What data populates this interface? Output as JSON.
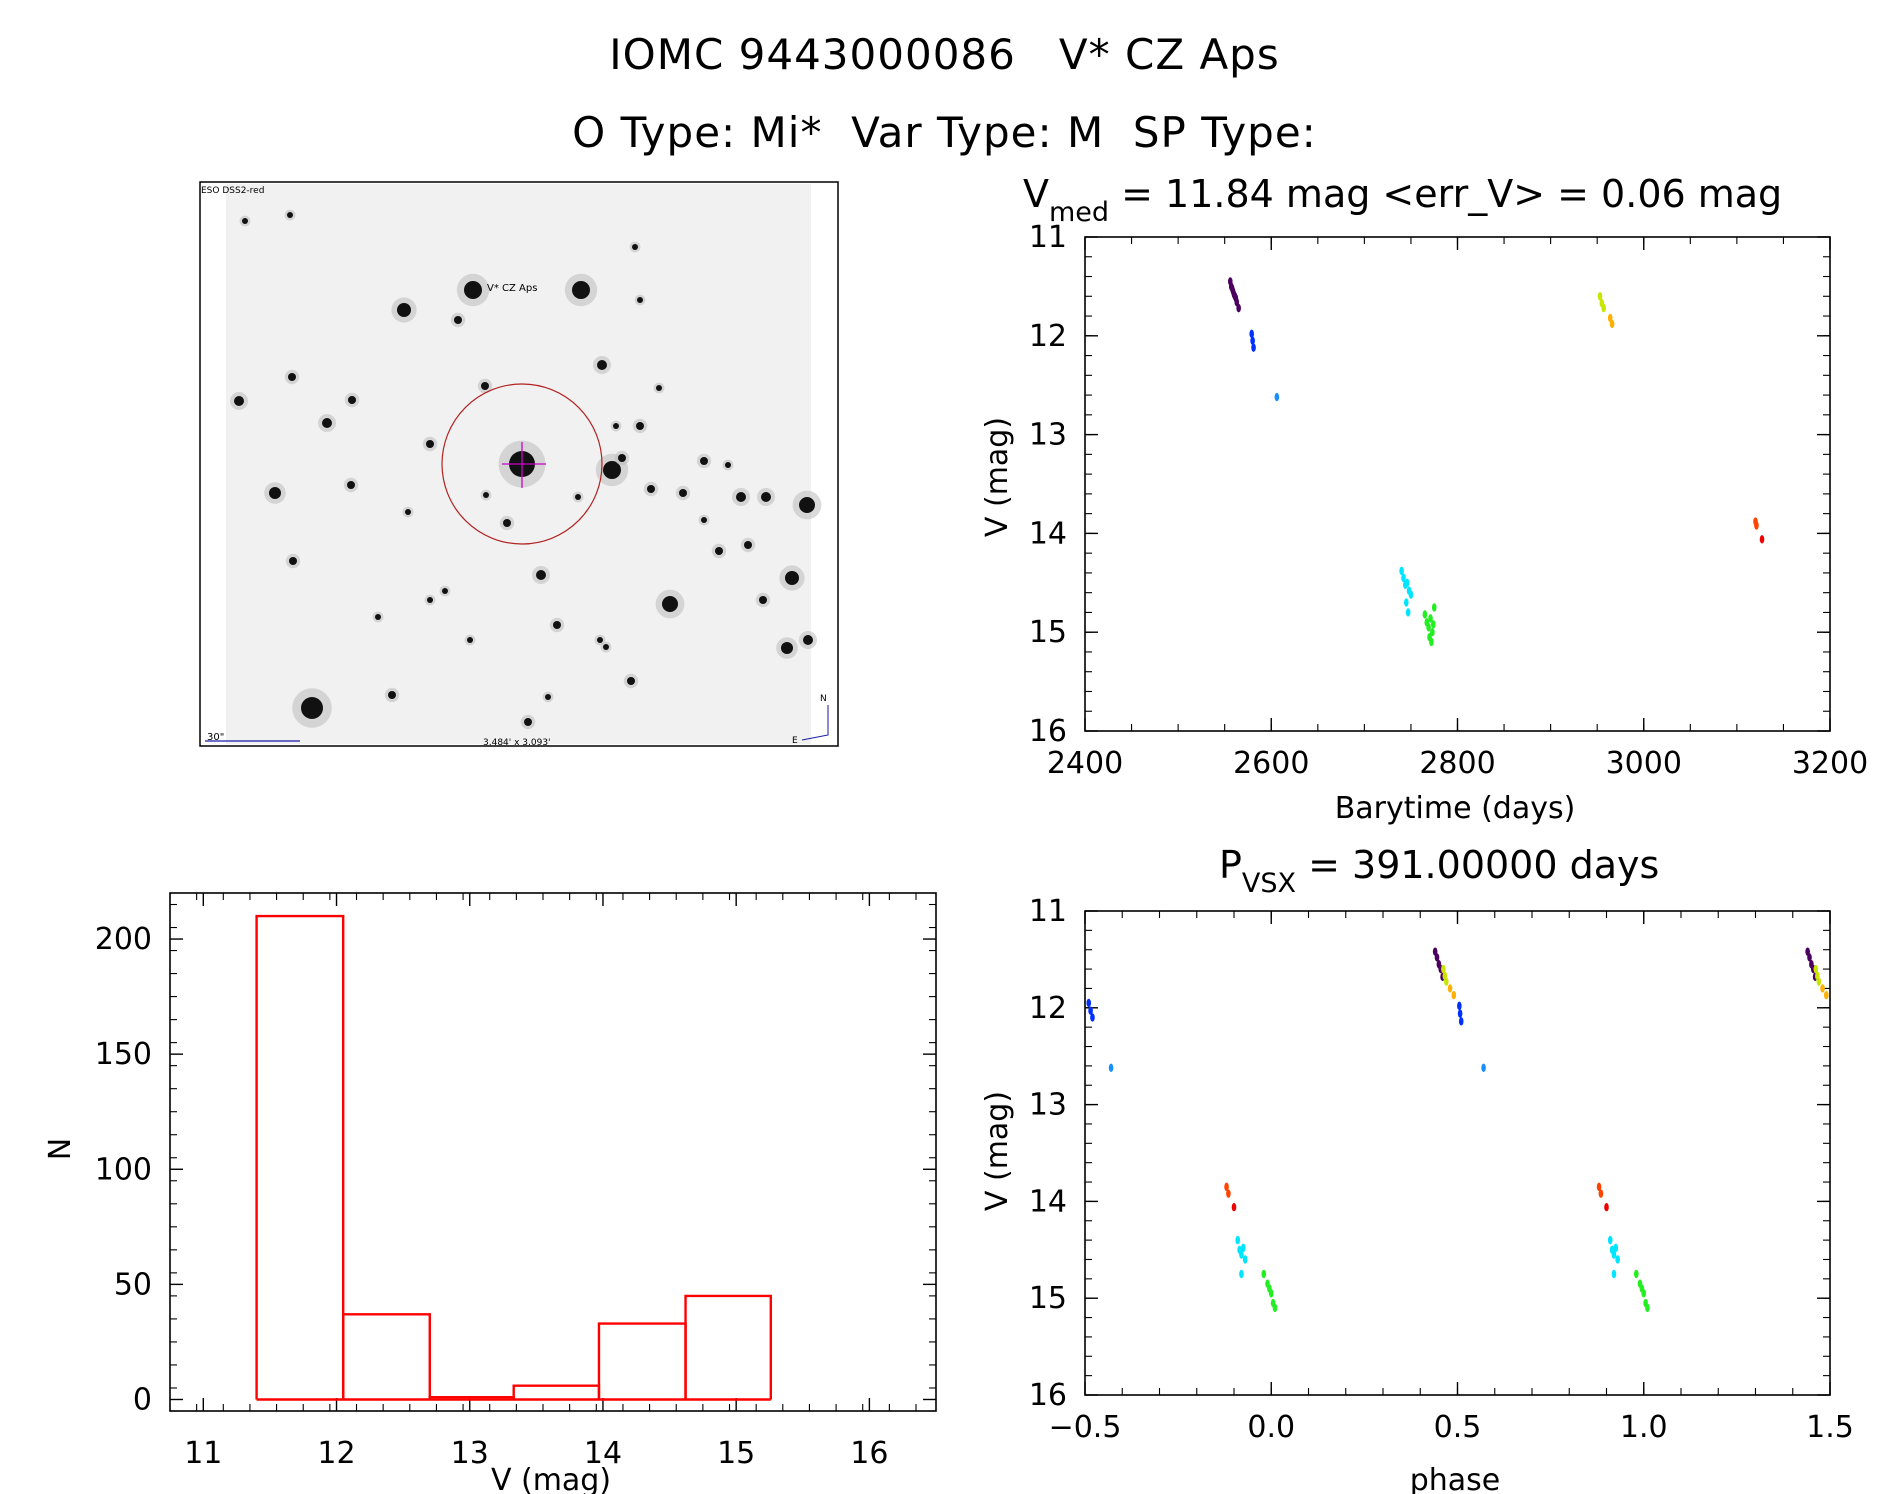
{
  "header": {
    "title_line1": "IOMC 9443000086   V* CZ Aps",
    "title_line2": "O Type: Mi*  Var Type: M  SP Type:"
  },
  "image_panel": {
    "survey_label": "ESO DSS2-red",
    "object_label": "V* CZ Aps",
    "scale_label": "30\"",
    "size_label": "3.484' x 3.093'",
    "north_label": "N",
    "east_label": "E"
  },
  "colors": {
    "histogram": "#ff0000",
    "circle": "#b22222",
    "crosshair": "#cc00cc",
    "label_blue": "#1a1aa6",
    "label_red": "#cc0000"
  },
  "chart_data": [
    {
      "id": "lightcurve",
      "type": "scatter",
      "title_main": "V",
      "title_sub": "med",
      "title_rest": " = 11.84 mag <err_V> = 0.06 mag",
      "xlabel": "Barytime (days)",
      "ylabel": "V (mag)",
      "xlim": [
        2400,
        3200
      ],
      "ylim": [
        16,
        11
      ],
      "xticks": [
        2400,
        2600,
        2800,
        3000,
        3200
      ],
      "yticks": [
        11,
        12,
        13,
        14,
        15,
        16
      ],
      "groups": [
        {
          "color": "#4b0060",
          "x": [
            2556,
            2558,
            2560,
            2562,
            2563,
            2565
          ],
          "y": [
            11.45,
            11.52,
            11.58,
            11.62,
            11.66,
            11.72
          ]
        },
        {
          "color": "#4b0060",
          "x": [
            2557,
            2559,
            2561
          ],
          "y": [
            11.5,
            11.55,
            11.6
          ]
        },
        {
          "color": "#0030ff",
          "x": [
            2579,
            2580,
            2581
          ],
          "y": [
            11.98,
            12.05,
            12.12
          ]
        },
        {
          "color": "#1a90ff",
          "x": [
            2606
          ],
          "y": [
            12.62
          ]
        },
        {
          "color": "#00e5ff",
          "x": [
            2740,
            2742,
            2744,
            2746,
            2748,
            2750,
            2745,
            2747
          ],
          "y": [
            14.38,
            14.45,
            14.52,
            14.5,
            14.58,
            14.62,
            14.7,
            14.8
          ]
        },
        {
          "color": "#22ee22",
          "x": [
            2765,
            2767,
            2769,
            2771,
            2773,
            2775,
            2770,
            2772,
            2774
          ],
          "y": [
            14.82,
            14.9,
            14.95,
            14.86,
            15.0,
            14.75,
            15.05,
            15.1,
            14.92
          ]
        },
        {
          "color": "#c8e600",
          "x": [
            2953,
            2955,
            2957
          ],
          "y": [
            11.6,
            11.67,
            11.72
          ]
        },
        {
          "color": "#ffb000",
          "x": [
            2964,
            2966
          ],
          "y": [
            11.82,
            11.88
          ]
        },
        {
          "color": "#ff4400",
          "x": [
            3120,
            3121
          ],
          "y": [
            13.88,
            13.92
          ]
        },
        {
          "color": "#ee0000",
          "x": [
            3127
          ],
          "y": [
            14.06
          ]
        }
      ]
    },
    {
      "id": "phased",
      "type": "scatter",
      "title_main": "P",
      "title_sub": "VSX",
      "title_rest": " = 391.00000 days",
      "xlabel": "phase",
      "ylabel": "V (mag)",
      "xlim": [
        -0.5,
        1.5
      ],
      "ylim": [
        16,
        11
      ],
      "xticks": [
        -0.5,
        0.0,
        0.5,
        1.0,
        1.5
      ],
      "xtick_labels": [
        "−0.5",
        "0.0",
        "0.5",
        "1.0",
        "1.5"
      ],
      "yticks": [
        11,
        12,
        13,
        14,
        15,
        16
      ],
      "groups": [
        {
          "color": "#0030ff",
          "x": [
            -0.49,
            -0.485,
            -0.48
          ],
          "y": [
            11.95,
            12.03,
            12.1
          ]
        },
        {
          "color": "#1a90ff",
          "x": [
            -0.43
          ],
          "y": [
            12.62
          ]
        },
        {
          "color": "#ff4400",
          "x": [
            -0.12,
            -0.115
          ],
          "y": [
            13.85,
            13.92
          ]
        },
        {
          "color": "#ee0000",
          "x": [
            -0.1
          ],
          "y": [
            14.06
          ]
        },
        {
          "color": "#00e5ff",
          "x": [
            -0.09,
            -0.085,
            -0.08,
            -0.075,
            -0.07,
            -0.08
          ],
          "y": [
            14.4,
            14.5,
            14.55,
            14.48,
            14.6,
            14.75
          ]
        },
        {
          "color": "#22ee22",
          "x": [
            -0.02,
            -0.01,
            0.0,
            0.005,
            0.01,
            -0.005
          ],
          "y": [
            14.75,
            14.85,
            14.95,
            15.05,
            15.1,
            14.9
          ]
        },
        {
          "color": "#4b0060",
          "x": [
            0.44,
            0.445,
            0.45,
            0.455,
            0.46
          ],
          "y": [
            11.42,
            11.48,
            11.55,
            11.6,
            11.68
          ]
        },
        {
          "color": "#c8e600",
          "x": [
            0.462,
            0.466,
            0.47
          ],
          "y": [
            11.6,
            11.67,
            11.73
          ]
        },
        {
          "color": "#ffb000",
          "x": [
            0.48,
            0.49
          ],
          "y": [
            11.8,
            11.87
          ]
        },
        {
          "color": "#0030ff",
          "x": [
            0.505,
            0.507,
            0.51
          ],
          "y": [
            11.98,
            12.06,
            12.14
          ]
        },
        {
          "color": "#1a90ff",
          "x": [
            0.57
          ],
          "y": [
            12.62
          ]
        },
        {
          "color": "#ff4400",
          "x": [
            0.88,
            0.885
          ],
          "y": [
            13.85,
            13.92
          ]
        },
        {
          "color": "#ee0000",
          "x": [
            0.9
          ],
          "y": [
            14.06
          ]
        },
        {
          "color": "#00e5ff",
          "x": [
            0.91,
            0.915,
            0.92,
            0.925,
            0.93,
            0.92
          ],
          "y": [
            14.4,
            14.5,
            14.55,
            14.48,
            14.6,
            14.75
          ]
        },
        {
          "color": "#22ee22",
          "x": [
            0.98,
            0.99,
            1.0,
            1.005,
            1.01,
            0.995
          ],
          "y": [
            14.75,
            14.85,
            14.95,
            15.05,
            15.1,
            14.9
          ]
        },
        {
          "color": "#4b0060",
          "x": [
            1.44,
            1.445,
            1.45,
            1.455,
            1.46
          ],
          "y": [
            11.42,
            11.48,
            11.55,
            11.6,
            11.68
          ]
        },
        {
          "color": "#c8e600",
          "x": [
            1.462,
            1.466,
            1.47
          ],
          "y": [
            11.6,
            11.67,
            11.73
          ]
        },
        {
          "color": "#ffb000",
          "x": [
            1.48,
            1.49
          ],
          "y": [
            11.8,
            11.87
          ]
        }
      ]
    },
    {
      "id": "histogram",
      "type": "bar",
      "xlabel": "V (mag)",
      "ylabel": "N",
      "xlim": [
        10.75,
        16.5
      ],
      "ylim": [
        -5,
        220
      ],
      "xticks": [
        11,
        12,
        13,
        14,
        15,
        16
      ],
      "yticks": [
        0,
        50,
        100,
        150,
        200
      ],
      "bins": [
        {
          "x0": 11.4,
          "x1": 12.05,
          "count": 210
        },
        {
          "x0": 12.05,
          "x1": 12.7,
          "count": 37
        },
        {
          "x0": 12.7,
          "x1": 13.33,
          "count": 1
        },
        {
          "x0": 13.33,
          "x1": 13.97,
          "count": 6
        },
        {
          "x0": 13.97,
          "x1": 14.62,
          "count": 33
        },
        {
          "x0": 14.62,
          "x1": 15.26,
          "count": 45
        }
      ]
    }
  ]
}
